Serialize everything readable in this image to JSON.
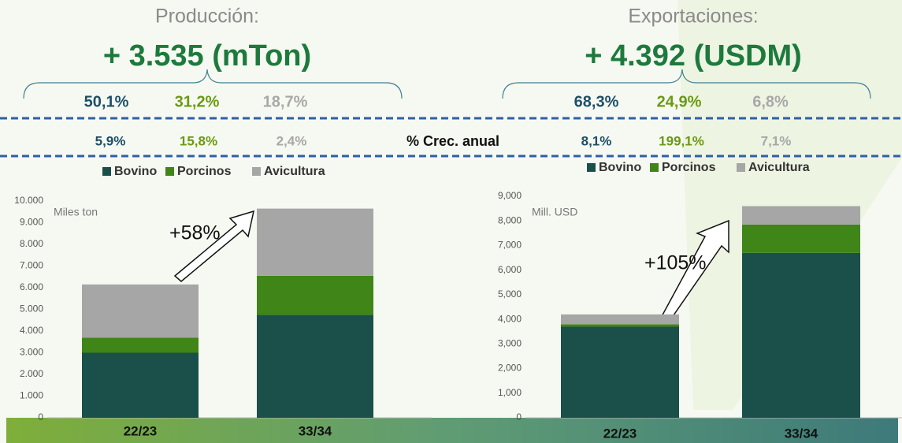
{
  "center_label": "% Crec. anual",
  "chart_data": [
    {
      "type": "bar",
      "stacked": true,
      "title": "Producción:",
      "subtitle": "+ 3.535 (mTon)",
      "shares": [
        "50,1%",
        "31,2%",
        "18,7%"
      ],
      "growth": [
        "5,9%",
        "15,8%",
        "2,4%"
      ],
      "unit_label": "Miles ton",
      "annotation": "+58%",
      "categories": [
        "22/23",
        "33/34"
      ],
      "series": [
        {
          "name": "Bovino",
          "color": "#1b4f4a",
          "values": [
            3000,
            4750
          ]
        },
        {
          "name": "Porcinos",
          "color": "#3f8517",
          "values": [
            700,
            1800
          ]
        },
        {
          "name": "Avicultura",
          "color": "#a6a6a6",
          "values": [
            2450,
            3100
          ]
        }
      ],
      "ylim": [
        0,
        10000
      ],
      "yticks": [
        0,
        {
          "value": 1000,
          "label": "1.000"
        },
        {
          "value": 2000,
          "label": "2.000"
        },
        {
          "value": 3000,
          "label": "3.000"
        },
        {
          "value": 4000,
          "label": "4.000"
        },
        {
          "value": 5000,
          "label": "5.000"
        },
        {
          "value": 6000,
          "label": "6.000"
        },
        {
          "value": 7000,
          "label": "7.000"
        },
        {
          "value": 8000,
          "label": "8.000"
        },
        {
          "value": 9000,
          "label": "9.000"
        },
        {
          "value": 10000,
          "label": "10.000"
        }
      ]
    },
    {
      "type": "bar",
      "stacked": true,
      "title": "Exportaciones:",
      "subtitle": "+ 4.392 (USDM)",
      "shares": [
        "68,3%",
        "24,9%",
        "6,8%"
      ],
      "growth": [
        "8,1%",
        "199,1%",
        "7,1%"
      ],
      "unit_label": "Mill. USD",
      "annotation": "+105%",
      "categories": [
        "22/23",
        "33/34"
      ],
      "series": [
        {
          "name": "Bovino",
          "color": "#1b4f4a",
          "values": [
            3700,
            6700
          ]
        },
        {
          "name": "Porcinos",
          "color": "#3f8517",
          "values": [
            100,
            1150
          ]
        },
        {
          "name": "Avicultura",
          "color": "#a6a6a6",
          "values": [
            400,
            750
          ]
        }
      ],
      "ylim": [
        0,
        9000
      ],
      "yticks": [
        0,
        {
          "value": 1000,
          "label": "1,000"
        },
        {
          "value": 2000,
          "label": "2,000"
        },
        {
          "value": 3000,
          "label": "3,000"
        },
        {
          "value": 4000,
          "label": "4,000"
        },
        {
          "value": 5000,
          "label": "5,000"
        },
        {
          "value": 6000,
          "label": "6,000"
        },
        {
          "value": 7000,
          "label": "7,000"
        },
        {
          "value": 8000,
          "label": "8,000"
        },
        {
          "value": 9000,
          "label": "9,000"
        }
      ]
    }
  ]
}
